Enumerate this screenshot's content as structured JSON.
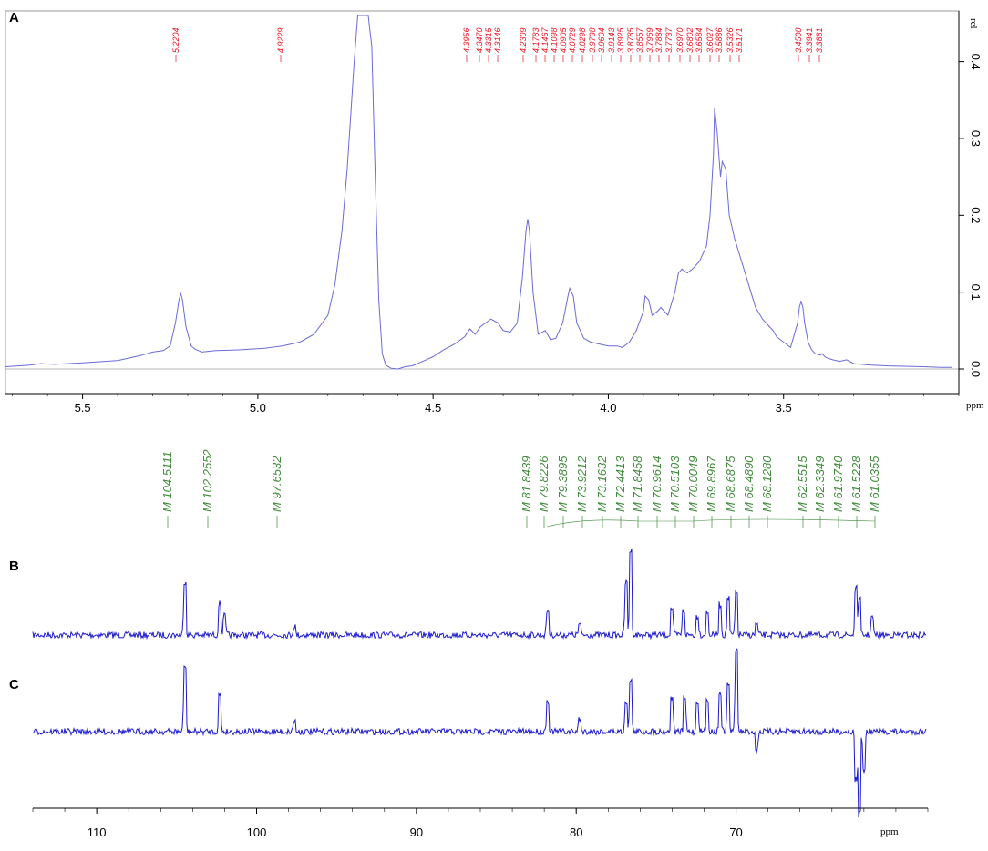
{
  "colors": {
    "h_spectrum": "#6a6ad8",
    "c_spectrum": "#1a1acc",
    "h_peak_labels": "#e8141e",
    "c_peak_labels": "#3f8a3a",
    "axis": "#000000"
  },
  "chart_data": [
    {
      "type": "line",
      "panel_label": "A",
      "xlabel": "ppm",
      "ylabel": "rel",
      "xlim": [
        5.72,
        3.0
      ],
      "ylim": [
        -0.02,
        0.46
      ],
      "x_ticks": [
        "5.5",
        "5.0",
        "4.5",
        "4.0",
        "3.5"
      ],
      "y_ticks": [
        "0.0",
        "0.1",
        "0.2",
        "0.3",
        "0.4"
      ],
      "peak_labels": [
        "5.2204",
        "4.9229",
        "4.3956",
        "4.3470",
        "4.3315",
        "4.3146",
        "4.2309",
        "4.1783",
        "4.1467",
        "4.1098",
        "4.0905",
        "4.0729",
        "4.0298",
        "3.9738",
        "3.9604",
        "3.9143",
        "3.8925",
        "3.8785",
        "3.8557",
        "3.7969",
        "3.7884",
        "3.7737",
        "3.6970",
        "3.6802",
        "3.6584",
        "3.6027",
        "3.5886",
        "3.5326",
        "3.5171",
        "3.4508",
        "3.3941",
        "3.3881"
      ],
      "series": [
        {
          "x": [
            5.72,
            5.65,
            5.62,
            5.58,
            5.5,
            5.4,
            5.33,
            5.3,
            5.27,
            5.25,
            5.235,
            5.225,
            5.22,
            5.215,
            5.205,
            5.19,
            5.18,
            5.16,
            5.12,
            5.05,
            4.98,
            4.93,
            4.88,
            4.84,
            4.8,
            4.78,
            4.76,
            4.745,
            4.735,
            4.725,
            4.715,
            4.705,
            4.695,
            4.685,
            4.675,
            4.665,
            4.655,
            4.645,
            4.635,
            4.62,
            4.6,
            4.58,
            4.56,
            4.54,
            4.52,
            4.5,
            4.47,
            4.44,
            4.41,
            4.395,
            4.38,
            4.365,
            4.35,
            4.335,
            4.315,
            4.3,
            4.28,
            4.26,
            4.245,
            4.235,
            4.23,
            4.225,
            4.215,
            4.2,
            4.18,
            4.165,
            4.15,
            4.13,
            4.115,
            4.11,
            4.1,
            4.09,
            4.07,
            4.05,
            4.03,
            4.0,
            3.975,
            3.96,
            3.94,
            3.92,
            3.9,
            3.895,
            3.885,
            3.875,
            3.86,
            3.85,
            3.83,
            3.81,
            3.8,
            3.79,
            3.775,
            3.76,
            3.74,
            3.72,
            3.71,
            3.7,
            3.697,
            3.69,
            3.68,
            3.675,
            3.665,
            3.655,
            3.64,
            3.62,
            3.6,
            3.58,
            3.56,
            3.54,
            3.53,
            3.52,
            3.5,
            3.48,
            3.46,
            3.455,
            3.45,
            3.445,
            3.44,
            3.43,
            3.42,
            3.41,
            3.395,
            3.39,
            3.38,
            3.36,
            3.34,
            3.32,
            3.3,
            3.25,
            3.2,
            3.1,
            3.05,
            3.02
          ],
          "y": [
            0.003,
            0.005,
            0.007,
            0.006,
            0.008,
            0.011,
            0.018,
            0.022,
            0.024,
            0.03,
            0.06,
            0.09,
            0.098,
            0.09,
            0.055,
            0.03,
            0.026,
            0.022,
            0.024,
            0.025,
            0.027,
            0.03,
            0.035,
            0.045,
            0.07,
            0.11,
            0.18,
            0.26,
            0.33,
            0.4,
            0.46,
            0.46,
            0.46,
            0.46,
            0.42,
            0.25,
            0.09,
            0.02,
            0.005,
            0.001,
            0.0,
            0.003,
            0.004,
            0.008,
            0.012,
            0.016,
            0.025,
            0.032,
            0.042,
            0.052,
            0.045,
            0.055,
            0.06,
            0.065,
            0.06,
            0.05,
            0.048,
            0.06,
            0.12,
            0.18,
            0.195,
            0.18,
            0.1,
            0.045,
            0.05,
            0.038,
            0.04,
            0.06,
            0.095,
            0.105,
            0.095,
            0.06,
            0.04,
            0.035,
            0.033,
            0.03,
            0.03,
            0.028,
            0.035,
            0.05,
            0.075,
            0.095,
            0.09,
            0.07,
            0.075,
            0.08,
            0.07,
            0.1,
            0.125,
            0.13,
            0.125,
            0.13,
            0.14,
            0.16,
            0.2,
            0.28,
            0.34,
            0.31,
            0.25,
            0.27,
            0.26,
            0.2,
            0.17,
            0.14,
            0.11,
            0.08,
            0.065,
            0.055,
            0.05,
            0.042,
            0.035,
            0.028,
            0.06,
            0.08,
            0.088,
            0.08,
            0.06,
            0.035,
            0.025,
            0.02,
            0.018,
            0.02,
            0.015,
            0.012,
            0.01,
            0.012,
            0.007,
            0.005,
            0.004,
            0.003,
            0.002,
            0.002
          ]
        }
      ]
    },
    {
      "type": "line",
      "panel_label": "B",
      "xlabel": "ppm",
      "xlim": [
        114,
        58
      ],
      "x_ticks": [
        "110",
        "100",
        "90",
        "80",
        "70"
      ],
      "peak_labels": [
        "M 104.5111",
        "M 102.2552",
        "M 97.6532",
        "M 81.8439",
        "M 79.8226",
        "M 79.3895",
        "M 73.9212",
        "M 73.1632",
        "M 72.4413",
        "M 71.8458",
        "M 70.9614",
        "M 70.5103",
        "M 70.0049",
        "M 69.8967",
        "M 68.6875",
        "M 68.4890",
        "M 68.1280",
        "M 62.5515",
        "M 62.3349",
        "M 61.9740",
        "M 61.5228",
        "M 61.0355"
      ],
      "series": [
        {
          "peaks": [
            {
              "x": 104.5,
              "height": 0.62
            },
            {
              "x": 102.3,
              "height": 0.36
            },
            {
              "x": 102.0,
              "height": 0.22
            },
            {
              "x": 97.65,
              "height": 0.1
            },
            {
              "x": 81.8,
              "height": 0.28
            },
            {
              "x": 79.8,
              "height": 0.12
            },
            {
              "x": 76.6,
              "height": 0.97
            },
            {
              "x": 76.9,
              "height": 0.6
            },
            {
              "x": 74.0,
              "height": 0.3
            },
            {
              "x": 73.3,
              "height": 0.28
            },
            {
              "x": 72.4,
              "height": 0.22
            },
            {
              "x": 71.8,
              "height": 0.25
            },
            {
              "x": 71.0,
              "height": 0.35
            },
            {
              "x": 70.5,
              "height": 0.42
            },
            {
              "x": 70.0,
              "height": 0.48
            },
            {
              "x": 68.7,
              "height": 0.12
            },
            {
              "x": 62.5,
              "height": 0.52
            },
            {
              "x": 62.3,
              "height": 0.4
            },
            {
              "x": 61.5,
              "height": 0.2
            }
          ]
        }
      ]
    },
    {
      "type": "line",
      "panel_label": "C",
      "xlim": [
        114,
        58
      ],
      "series": [
        {
          "peaks": [
            {
              "x": 104.5,
              "height": 0.75
            },
            {
              "x": 102.3,
              "height": 0.42
            },
            {
              "x": 97.65,
              "height": 0.12
            },
            {
              "x": 81.8,
              "height": 0.35
            },
            {
              "x": 79.8,
              "height": 0.15
            },
            {
              "x": 76.6,
              "height": 0.6
            },
            {
              "x": 76.9,
              "height": 0.35
            },
            {
              "x": 74.0,
              "height": 0.4
            },
            {
              "x": 73.2,
              "height": 0.38
            },
            {
              "x": 72.4,
              "height": 0.34
            },
            {
              "x": 71.8,
              "height": 0.35
            },
            {
              "x": 71.0,
              "height": 0.45
            },
            {
              "x": 70.5,
              "height": 0.55
            },
            {
              "x": 70.0,
              "height": 0.95
            },
            {
              "x": 68.7,
              "height": -0.22
            },
            {
              "x": 62.5,
              "height": -0.55
            },
            {
              "x": 62.3,
              "height": -0.95
            },
            {
              "x": 62.0,
              "height": -0.45
            }
          ]
        }
      ]
    }
  ]
}
